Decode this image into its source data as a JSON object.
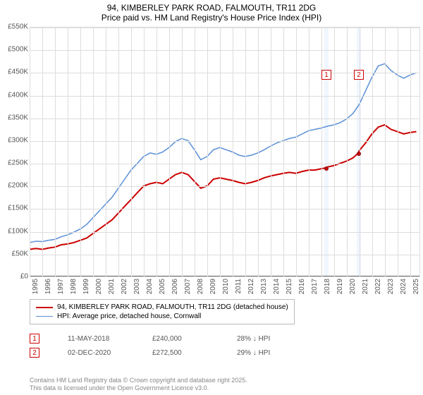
{
  "title": "94, KIMBERLEY PARK ROAD, FALMOUTH, TR11 2DG",
  "subtitle": "Price paid vs. HM Land Registry's House Price Index (HPI)",
  "chart": {
    "type": "line",
    "ylim": [
      0,
      550000
    ],
    "ytick_step": 50000,
    "ytick_labels": [
      "£0",
      "£50K",
      "£100K",
      "£150K",
      "£200K",
      "£250K",
      "£300K",
      "£350K",
      "£400K",
      "£450K",
      "£500K",
      "£550K"
    ],
    "x_years": [
      1995,
      1996,
      1997,
      1998,
      1999,
      2000,
      2001,
      2002,
      2003,
      2004,
      2005,
      2006,
      2007,
      2008,
      2009,
      2010,
      2011,
      2012,
      2013,
      2014,
      2015,
      2016,
      2017,
      2018,
      2019,
      2020,
      2021,
      2022,
      2023,
      2024,
      2025
    ],
    "xlim": [
      1995,
      2025.75
    ],
    "background_color": "#ffffff",
    "grid_color": "#dddddd",
    "axis_color": "#555555",
    "series": {
      "price_paid": {
        "label": "94, KIMBERLEY PARK ROAD, FALMOUTH, TR11 2DG (detached house)",
        "color": "#cc0000",
        "width": 2,
        "points": [
          [
            1995.0,
            60000
          ],
          [
            1995.5,
            62000
          ],
          [
            1996.0,
            60000
          ],
          [
            1996.5,
            63000
          ],
          [
            1997.0,
            65000
          ],
          [
            1997.5,
            70000
          ],
          [
            1998.0,
            72000
          ],
          [
            1998.5,
            75000
          ],
          [
            1999.0,
            80000
          ],
          [
            1999.5,
            85000
          ],
          [
            2000.0,
            95000
          ],
          [
            2000.5,
            105000
          ],
          [
            2001.0,
            115000
          ],
          [
            2001.5,
            125000
          ],
          [
            2002.0,
            140000
          ],
          [
            2002.5,
            155000
          ],
          [
            2003.0,
            170000
          ],
          [
            2003.5,
            185000
          ],
          [
            2004.0,
            200000
          ],
          [
            2004.5,
            205000
          ],
          [
            2005.0,
            208000
          ],
          [
            2005.5,
            205000
          ],
          [
            2006.0,
            215000
          ],
          [
            2006.5,
            225000
          ],
          [
            2007.0,
            230000
          ],
          [
            2007.5,
            225000
          ],
          [
            2008.0,
            210000
          ],
          [
            2008.5,
            195000
          ],
          [
            2009.0,
            200000
          ],
          [
            2009.5,
            215000
          ],
          [
            2010.0,
            218000
          ],
          [
            2010.5,
            215000
          ],
          [
            2011.0,
            212000
          ],
          [
            2011.5,
            208000
          ],
          [
            2012.0,
            205000
          ],
          [
            2012.5,
            208000
          ],
          [
            2013.0,
            212000
          ],
          [
            2013.5,
            218000
          ],
          [
            2014.0,
            222000
          ],
          [
            2014.5,
            225000
          ],
          [
            2015.0,
            228000
          ],
          [
            2015.5,
            230000
          ],
          [
            2016.0,
            228000
          ],
          [
            2016.5,
            232000
          ],
          [
            2017.0,
            235000
          ],
          [
            2017.5,
            235000
          ],
          [
            2018.0,
            238000
          ],
          [
            2018.37,
            240000
          ],
          [
            2018.5,
            242000
          ],
          [
            2019.0,
            245000
          ],
          [
            2019.5,
            250000
          ],
          [
            2020.0,
            255000
          ],
          [
            2020.5,
            262000
          ],
          [
            2020.92,
            272500
          ],
          [
            2021.0,
            278000
          ],
          [
            2021.5,
            295000
          ],
          [
            2022.0,
            315000
          ],
          [
            2022.5,
            330000
          ],
          [
            2023.0,
            335000
          ],
          [
            2023.5,
            325000
          ],
          [
            2024.0,
            320000
          ],
          [
            2024.5,
            315000
          ],
          [
            2025.0,
            318000
          ],
          [
            2025.5,
            320000
          ]
        ]
      },
      "hpi": {
        "label": "HPI: Average price, detached house, Cornwall",
        "color": "#5a8fd6",
        "width": 1.5,
        "points": [
          [
            1995.0,
            75000
          ],
          [
            1995.5,
            78000
          ],
          [
            1996.0,
            77000
          ],
          [
            1996.5,
            80000
          ],
          [
            1997.0,
            82000
          ],
          [
            1997.5,
            88000
          ],
          [
            1998.0,
            92000
          ],
          [
            1998.5,
            98000
          ],
          [
            1999.0,
            105000
          ],
          [
            1999.5,
            115000
          ],
          [
            2000.0,
            130000
          ],
          [
            2000.5,
            145000
          ],
          [
            2001.0,
            160000
          ],
          [
            2001.5,
            175000
          ],
          [
            2002.0,
            195000
          ],
          [
            2002.5,
            215000
          ],
          [
            2003.0,
            235000
          ],
          [
            2003.5,
            250000
          ],
          [
            2004.0,
            265000
          ],
          [
            2004.5,
            273000
          ],
          [
            2005.0,
            270000
          ],
          [
            2005.5,
            275000
          ],
          [
            2006.0,
            285000
          ],
          [
            2006.5,
            298000
          ],
          [
            2007.0,
            305000
          ],
          [
            2007.5,
            300000
          ],
          [
            2008.0,
            280000
          ],
          [
            2008.5,
            258000
          ],
          [
            2009.0,
            265000
          ],
          [
            2009.5,
            280000
          ],
          [
            2010.0,
            285000
          ],
          [
            2010.5,
            280000
          ],
          [
            2011.0,
            275000
          ],
          [
            2011.5,
            268000
          ],
          [
            2012.0,
            265000
          ],
          [
            2012.5,
            268000
          ],
          [
            2013.0,
            273000
          ],
          [
            2013.5,
            280000
          ],
          [
            2014.0,
            288000
          ],
          [
            2014.5,
            295000
          ],
          [
            2015.0,
            300000
          ],
          [
            2015.5,
            305000
          ],
          [
            2016.0,
            308000
          ],
          [
            2016.5,
            315000
          ],
          [
            2017.0,
            322000
          ],
          [
            2017.5,
            325000
          ],
          [
            2018.0,
            328000
          ],
          [
            2018.5,
            332000
          ],
          [
            2019.0,
            335000
          ],
          [
            2019.5,
            340000
          ],
          [
            2020.0,
            348000
          ],
          [
            2020.5,
            360000
          ],
          [
            2021.0,
            380000
          ],
          [
            2021.5,
            410000
          ],
          [
            2022.0,
            440000
          ],
          [
            2022.5,
            465000
          ],
          [
            2023.0,
            470000
          ],
          [
            2023.5,
            455000
          ],
          [
            2024.0,
            445000
          ],
          [
            2024.5,
            438000
          ],
          [
            2025.0,
            445000
          ],
          [
            2025.5,
            450000
          ]
        ]
      }
    },
    "bands": [
      {
        "from": 2018.2,
        "to": 2018.55,
        "color": "#e6f0ff"
      },
      {
        "from": 2020.75,
        "to": 2021.1,
        "color": "#e6f0ff"
      }
    ],
    "markers": [
      {
        "id": "1",
        "x": 2018.37,
        "y": 240000,
        "label_y_top": 60
      },
      {
        "id": "2",
        "x": 2020.92,
        "y": 272500,
        "label_y_top": 60
      }
    ]
  },
  "legend": {
    "rows": [
      {
        "color": "#cc0000",
        "width": 2,
        "label_path": "chart.series.price_paid.label"
      },
      {
        "color": "#5a8fd6",
        "width": 1.5,
        "label_path": "chart.series.hpi.label"
      }
    ]
  },
  "data_rows": [
    {
      "marker": "1",
      "date": "11-MAY-2018",
      "price": "£240,000",
      "diff": "28% ↓ HPI"
    },
    {
      "marker": "2",
      "date": "02-DEC-2020",
      "price": "£272,500",
      "diff": "29% ↓ HPI"
    }
  ],
  "footer_line1": "Contains HM Land Registry data © Crown copyright and database right 2025.",
  "footer_line2": "This data is licensed under the Open Government Licence v3.0."
}
